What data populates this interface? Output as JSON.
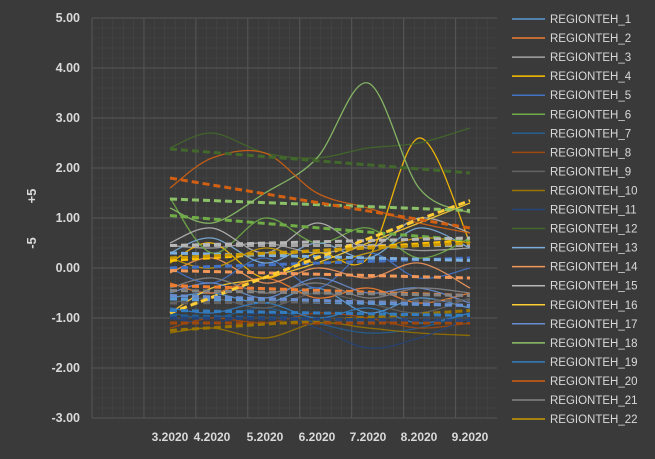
{
  "chart_data": {
    "type": "line",
    "title": "",
    "xlabel": "",
    "ylabel": "-5",
    "ylabel_top": "+5",
    "ylim": [
      -3.0,
      5.0
    ],
    "yticks": [
      "5.00",
      "4.00",
      "3.00",
      "2.00",
      "1.00",
      "0.00",
      "-1.00",
      "-2.00",
      "-3.00"
    ],
    "ytick_values": [
      5,
      4,
      3,
      2,
      1,
      0,
      -1,
      -2,
      -3
    ],
    "x_categories": [
      "3.2020",
      "4.2020",
      "5.2020",
      "6.2020",
      "7.2020",
      "8.2020",
      "9.2020"
    ],
    "grid": true,
    "legend_position": "right",
    "colors": {
      "background": "#3a3a3a",
      "gridline": "#555555",
      "text": "#d9d9d9"
    },
    "series": [
      {
        "name": "REGIONTEH_1",
        "color": "#5b9bd5",
        "values": [
          -0.6,
          -0.5,
          -0.7,
          -0.4,
          -0.9,
          -0.6,
          -0.8
        ],
        "trend": [
          -0.62,
          -0.75
        ]
      },
      {
        "name": "REGIONTEH_2",
        "color": "#ed7d31",
        "values": [
          -0.3,
          -0.5,
          -0.2,
          -0.6,
          -0.4,
          -0.7,
          -0.5
        ],
        "trend": [
          -0.35,
          -0.55
        ]
      },
      {
        "name": "REGIONTEH_3",
        "color": "#a5a5a5",
        "values": [
          0.45,
          0.4,
          0.5,
          0.3,
          0.45,
          0.35,
          0.4
        ],
        "trend": [
          0.45,
          0.45
        ]
      },
      {
        "name": "REGIONTEH_4",
        "color": "#ffc000",
        "values": [
          0.1,
          0.5,
          -0.2,
          0.3,
          0.2,
          2.6,
          0.5
        ],
        "trend": [
          0.15,
          0.55
        ]
      },
      {
        "name": "REGIONTEH_5",
        "color": "#4472c4",
        "values": [
          0.0,
          -0.3,
          0.2,
          -0.4,
          0.3,
          -0.2,
          0.0
        ],
        "trend": [
          0.0,
          0.2
        ]
      },
      {
        "name": "REGIONTEH_6",
        "color": "#70ad47",
        "values": [
          1.4,
          0.3,
          1.0,
          0.5,
          0.8,
          0.2,
          0.6
        ],
        "trend": [
          1.05,
          0.55
        ]
      },
      {
        "name": "REGIONTEH_7",
        "color": "#255e91",
        "values": [
          -0.9,
          -1.0,
          -0.8,
          -1.1,
          -1.3,
          -1.2,
          -0.9
        ],
        "trend": [
          -0.95,
          -1.1
        ]
      },
      {
        "name": "REGIONTEH_8",
        "color": "#9e480e",
        "values": [
          -1.2,
          -1.0,
          -1.1,
          -0.9,
          -1.0,
          -1.2,
          -1.1
        ],
        "trend": [
          -1.1,
          -1.1
        ]
      },
      {
        "name": "REGIONTEH_9",
        "color": "#636363",
        "values": [
          -0.7,
          -0.6,
          -0.8,
          -0.5,
          -0.7,
          -0.9,
          -0.6
        ],
        "trend": [
          -0.7,
          -0.65
        ]
      },
      {
        "name": "REGIONTEH_10",
        "color": "#997300",
        "values": [
          -1.3,
          -1.2,
          -1.4,
          -1.1,
          -1.2,
          -1.3,
          -1.35
        ],
        "trend": [
          -1.25,
          -0.85
        ]
      },
      {
        "name": "REGIONTEH_11",
        "color": "#264478",
        "values": [
          -1.0,
          -1.1,
          -0.9,
          -1.2,
          -1.6,
          -1.4,
          -1.0
        ],
        "trend": [
          -1.0,
          -1.05
        ]
      },
      {
        "name": "REGIONTEH_12",
        "color": "#43682b",
        "values": [
          2.4,
          2.7,
          2.3,
          2.2,
          2.4,
          2.5,
          2.8
        ],
        "trend": [
          2.38,
          1.9
        ]
      },
      {
        "name": "REGIONTEH_13",
        "color": "#7cafdd",
        "values": [
          0.3,
          0.6,
          0.1,
          0.5,
          0.2,
          0.8,
          0.4
        ],
        "trend": [
          0.3,
          0.15
        ]
      },
      {
        "name": "REGIONTEH_14",
        "color": "#f1975a",
        "values": [
          -0.1,
          0.2,
          -0.3,
          0.0,
          -0.2,
          0.1,
          -0.4
        ],
        "trend": [
          -0.05,
          -0.2
        ]
      },
      {
        "name": "REGIONTEH_15",
        "color": "#b7b7b7",
        "values": [
          0.5,
          0.8,
          0.3,
          0.9,
          0.4,
          1.0,
          0.7
        ],
        "trend": [
          0.45,
          0.6
        ]
      },
      {
        "name": "REGIONTEH_16",
        "color": "#ffcd33",
        "values": [
          -0.9,
          -0.4,
          -0.2,
          0.1,
          0.5,
          0.9,
          1.3
        ],
        "trend": [
          -0.9,
          1.35
        ]
      },
      {
        "name": "REGIONTEH_17",
        "color": "#698ed0",
        "values": [
          -0.5,
          -0.3,
          -0.6,
          -0.2,
          -0.5,
          -0.4,
          -0.7
        ],
        "trend": [
          -0.55,
          -0.75
        ]
      },
      {
        "name": "REGIONTEH_18",
        "color": "#8cc168",
        "values": [
          1.2,
          0.9,
          1.5,
          2.2,
          3.7,
          1.6,
          1.1
        ],
        "trend": [
          1.38,
          1.15
        ]
      },
      {
        "name": "REGIONTEH_19",
        "color": "#327dc2",
        "values": [
          -0.8,
          -0.9,
          -0.7,
          -1.0,
          -0.8,
          -1.1,
          -0.9
        ],
        "trend": [
          -0.85,
          -0.95
        ]
      },
      {
        "name": "REGIONTEH_20",
        "color": "#d26012",
        "values": [
          1.6,
          2.2,
          2.3,
          1.5,
          1.2,
          0.9,
          0.7
        ],
        "trend": [
          1.8,
          0.8
        ]
      },
      {
        "name": "REGIONTEH_21",
        "color": "#848484",
        "values": [
          -0.4,
          -0.2,
          -0.5,
          -0.3,
          -0.6,
          -0.4,
          -0.5
        ],
        "trend": [
          -0.45,
          -0.55
        ]
      },
      {
        "name": "REGIONTEH_22",
        "color": "#cc9a00",
        "values": [
          0.2,
          0.0,
          0.4,
          0.1,
          0.3,
          0.6,
          0.5
        ],
        "trend": [
          0.2,
          0.5
        ]
      }
    ]
  }
}
